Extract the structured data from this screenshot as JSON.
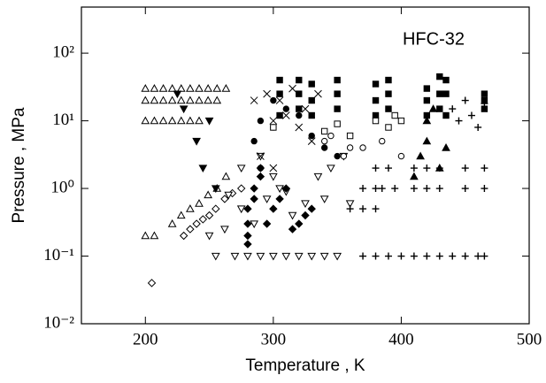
{
  "chart_data": {
    "type": "scatter",
    "annotation": "HFC-32",
    "xlabel": "Temperature , K",
    "ylabel": "Pressure , MPa",
    "xlim": [
      150,
      500
    ],
    "ylim": [
      0.01,
      480
    ],
    "xticks": [
      200,
      300,
      400,
      500
    ],
    "yticks": [
      {
        "value": 0.01,
        "label": "10⁻²"
      },
      {
        "value": 0.1,
        "label": "10⁻¹"
      },
      {
        "value": 1,
        "label": "10⁰"
      },
      {
        "value": 10,
        "label": "10¹"
      },
      {
        "value": 100,
        "label": "10²"
      }
    ],
    "log_y": true,
    "series": [
      {
        "marker": "triangle-up-open",
        "color": "#000000",
        "x": [
          200,
          207,
          214,
          221,
          228,
          235,
          242,
          249,
          256,
          263,
          200,
          207,
          214,
          221,
          228,
          235,
          242,
          249,
          256,
          200,
          207,
          214,
          221,
          228,
          235,
          242,
          200,
          207,
          221,
          228,
          235,
          242,
          249,
          256,
          263
        ],
        "values": [
          30,
          30,
          30,
          30,
          30,
          30,
          30,
          30,
          30,
          30,
          20,
          20,
          20,
          20,
          20,
          20,
          20,
          20,
          20,
          10,
          10,
          10,
          10,
          10,
          10,
          10,
          0.2,
          0.2,
          0.3,
          0.4,
          0.5,
          0.6,
          0.8,
          1.0,
          1.5
        ]
      },
      {
        "marker": "diamond-open",
        "color": "#000000",
        "x": [
          205,
          230,
          235,
          240,
          245,
          250,
          255,
          262,
          268,
          275
        ],
        "values": [
          0.04,
          0.2,
          0.25,
          0.3,
          0.35,
          0.4,
          0.5,
          0.7,
          0.85,
          1.0
        ]
      },
      {
        "marker": "triangle-down-open",
        "color": "#000000",
        "x": [
          255,
          270,
          280,
          290,
          300,
          310,
          320,
          330,
          340,
          350,
          265,
          275,
          285,
          295,
          305,
          315,
          325,
          335,
          345,
          355,
          250,
          262,
          275,
          290,
          300,
          310,
          340,
          360
        ],
        "values": [
          0.1,
          0.1,
          0.1,
          0.1,
          0.1,
          0.1,
          0.1,
          0.1,
          0.1,
          0.1,
          0.8,
          0.5,
          0.3,
          0.7,
          1.0,
          0.4,
          0.6,
          1.5,
          2.0,
          3.0,
          0.2,
          0.25,
          2.0,
          3.0,
          1.5,
          0.9,
          0.7,
          0.6
        ]
      },
      {
        "marker": "triangle-down-filled",
        "color": "#000000",
        "x": [
          225,
          230,
          240,
          245,
          250,
          255
        ],
        "values": [
          25,
          15,
          5,
          2,
          10,
          1
        ]
      },
      {
        "marker": "diamond-filled",
        "color": "#000000",
        "x": [
          280,
          280,
          280,
          280,
          285,
          285,
          290,
          290,
          295,
          300,
          305,
          310,
          315,
          320,
          325,
          330
        ],
        "values": [
          0.15,
          0.2,
          0.3,
          0.5,
          0.7,
          1,
          1.5,
          2,
          0.3,
          0.5,
          0.7,
          1,
          0.25,
          0.3,
          0.4,
          0.5
        ]
      },
      {
        "marker": "cross",
        "color": "#000000",
        "x": [
          285,
          295,
          305,
          315,
          325,
          335,
          300,
          310,
          320,
          330,
          290,
          300
        ],
        "values": [
          20,
          25,
          20,
          30,
          15,
          25,
          10,
          12,
          8,
          5,
          3,
          2
        ]
      },
      {
        "marker": "circle-filled",
        "color": "#000000",
        "x": [
          285,
          290,
          300,
          310,
          320,
          330,
          340,
          350,
          290,
          300
        ],
        "values": [
          5,
          10,
          8,
          15,
          12,
          6,
          4,
          3,
          2,
          20
        ]
      },
      {
        "marker": "plus",
        "color": "#000000",
        "x": [
          370,
          380,
          390,
          400,
          410,
          420,
          430,
          440,
          450,
          460,
          465,
          380,
          390,
          410,
          420,
          430,
          450,
          465,
          370,
          380,
          385,
          395,
          410,
          420,
          430,
          450,
          465,
          360,
          370,
          380,
          440,
          445,
          450,
          455,
          460,
          465
        ],
        "values": [
          0.1,
          0.1,
          0.1,
          0.1,
          0.1,
          0.1,
          0.1,
          0.1,
          0.1,
          0.1,
          0.1,
          2,
          2,
          2,
          2,
          2,
          2,
          2,
          1,
          1,
          1,
          1,
          1,
          1,
          1,
          1,
          1,
          0.5,
          0.5,
          0.5,
          15,
          10,
          20,
          12,
          8,
          18
        ]
      },
      {
        "marker": "square-filled",
        "color": "#000000",
        "x": [
          305,
          305,
          305,
          320,
          320,
          320,
          330,
          330,
          330,
          350,
          350,
          350,
          380,
          380,
          380,
          390,
          390,
          390,
          420,
          420,
          420,
          430,
          430,
          430,
          435,
          435,
          435,
          465,
          465,
          465
        ],
        "values": [
          12,
          25,
          40,
          15,
          25,
          40,
          12,
          20,
          35,
          15,
          25,
          40,
          12,
          20,
          35,
          15,
          25,
          40,
          12,
          20,
          30,
          15,
          25,
          45,
          12,
          25,
          40,
          15,
          20,
          25
        ]
      },
      {
        "marker": "square-open",
        "color": "#000000",
        "x": [
          300,
          340,
          350,
          360,
          380,
          390,
          395,
          400
        ],
        "values": [
          8,
          7,
          9,
          6,
          10,
          8,
          12,
          10
        ]
      },
      {
        "marker": "circle-open",
        "color": "#000000",
        "x": [
          340,
          345,
          355,
          360,
          370,
          385,
          400
        ],
        "values": [
          5,
          6,
          3,
          4,
          4,
          5,
          3
        ]
      },
      {
        "marker": "triangle-up-filled",
        "color": "#000000",
        "x": [
          410,
          415,
          420,
          420,
          425,
          430,
          435
        ],
        "values": [
          1.5,
          3,
          5,
          10,
          15,
          2,
          4
        ]
      }
    ]
  }
}
